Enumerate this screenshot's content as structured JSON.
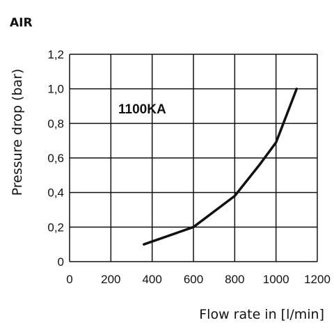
{
  "section_label": "AIR",
  "chart_data": {
    "type": "line",
    "title": "",
    "xlabel": "Flow rate in [l/min]",
    "ylabel": "Pressure drop (bar)",
    "xlim": [
      0,
      1200
    ],
    "ylim": [
      0,
      1.2
    ],
    "x_ticks": [
      "0",
      "200",
      "400",
      "600",
      "800",
      "1000",
      "1200"
    ],
    "y_ticks": [
      "0",
      "0,2",
      "0,4",
      "0,6",
      "0,8",
      "1,0",
      "1,2"
    ],
    "grid": true,
    "series": [
      {
        "name": "1100KA",
        "x": [
          360,
          600,
          800,
          920,
          1000,
          1100
        ],
        "y": [
          0.1,
          0.2,
          0.38,
          0.56,
          0.69,
          1.0
        ]
      }
    ],
    "annotations": [
      "1100KA"
    ],
    "colors": {
      "line": "#111111",
      "grid": "#111111",
      "background": "#ffffff"
    }
  }
}
